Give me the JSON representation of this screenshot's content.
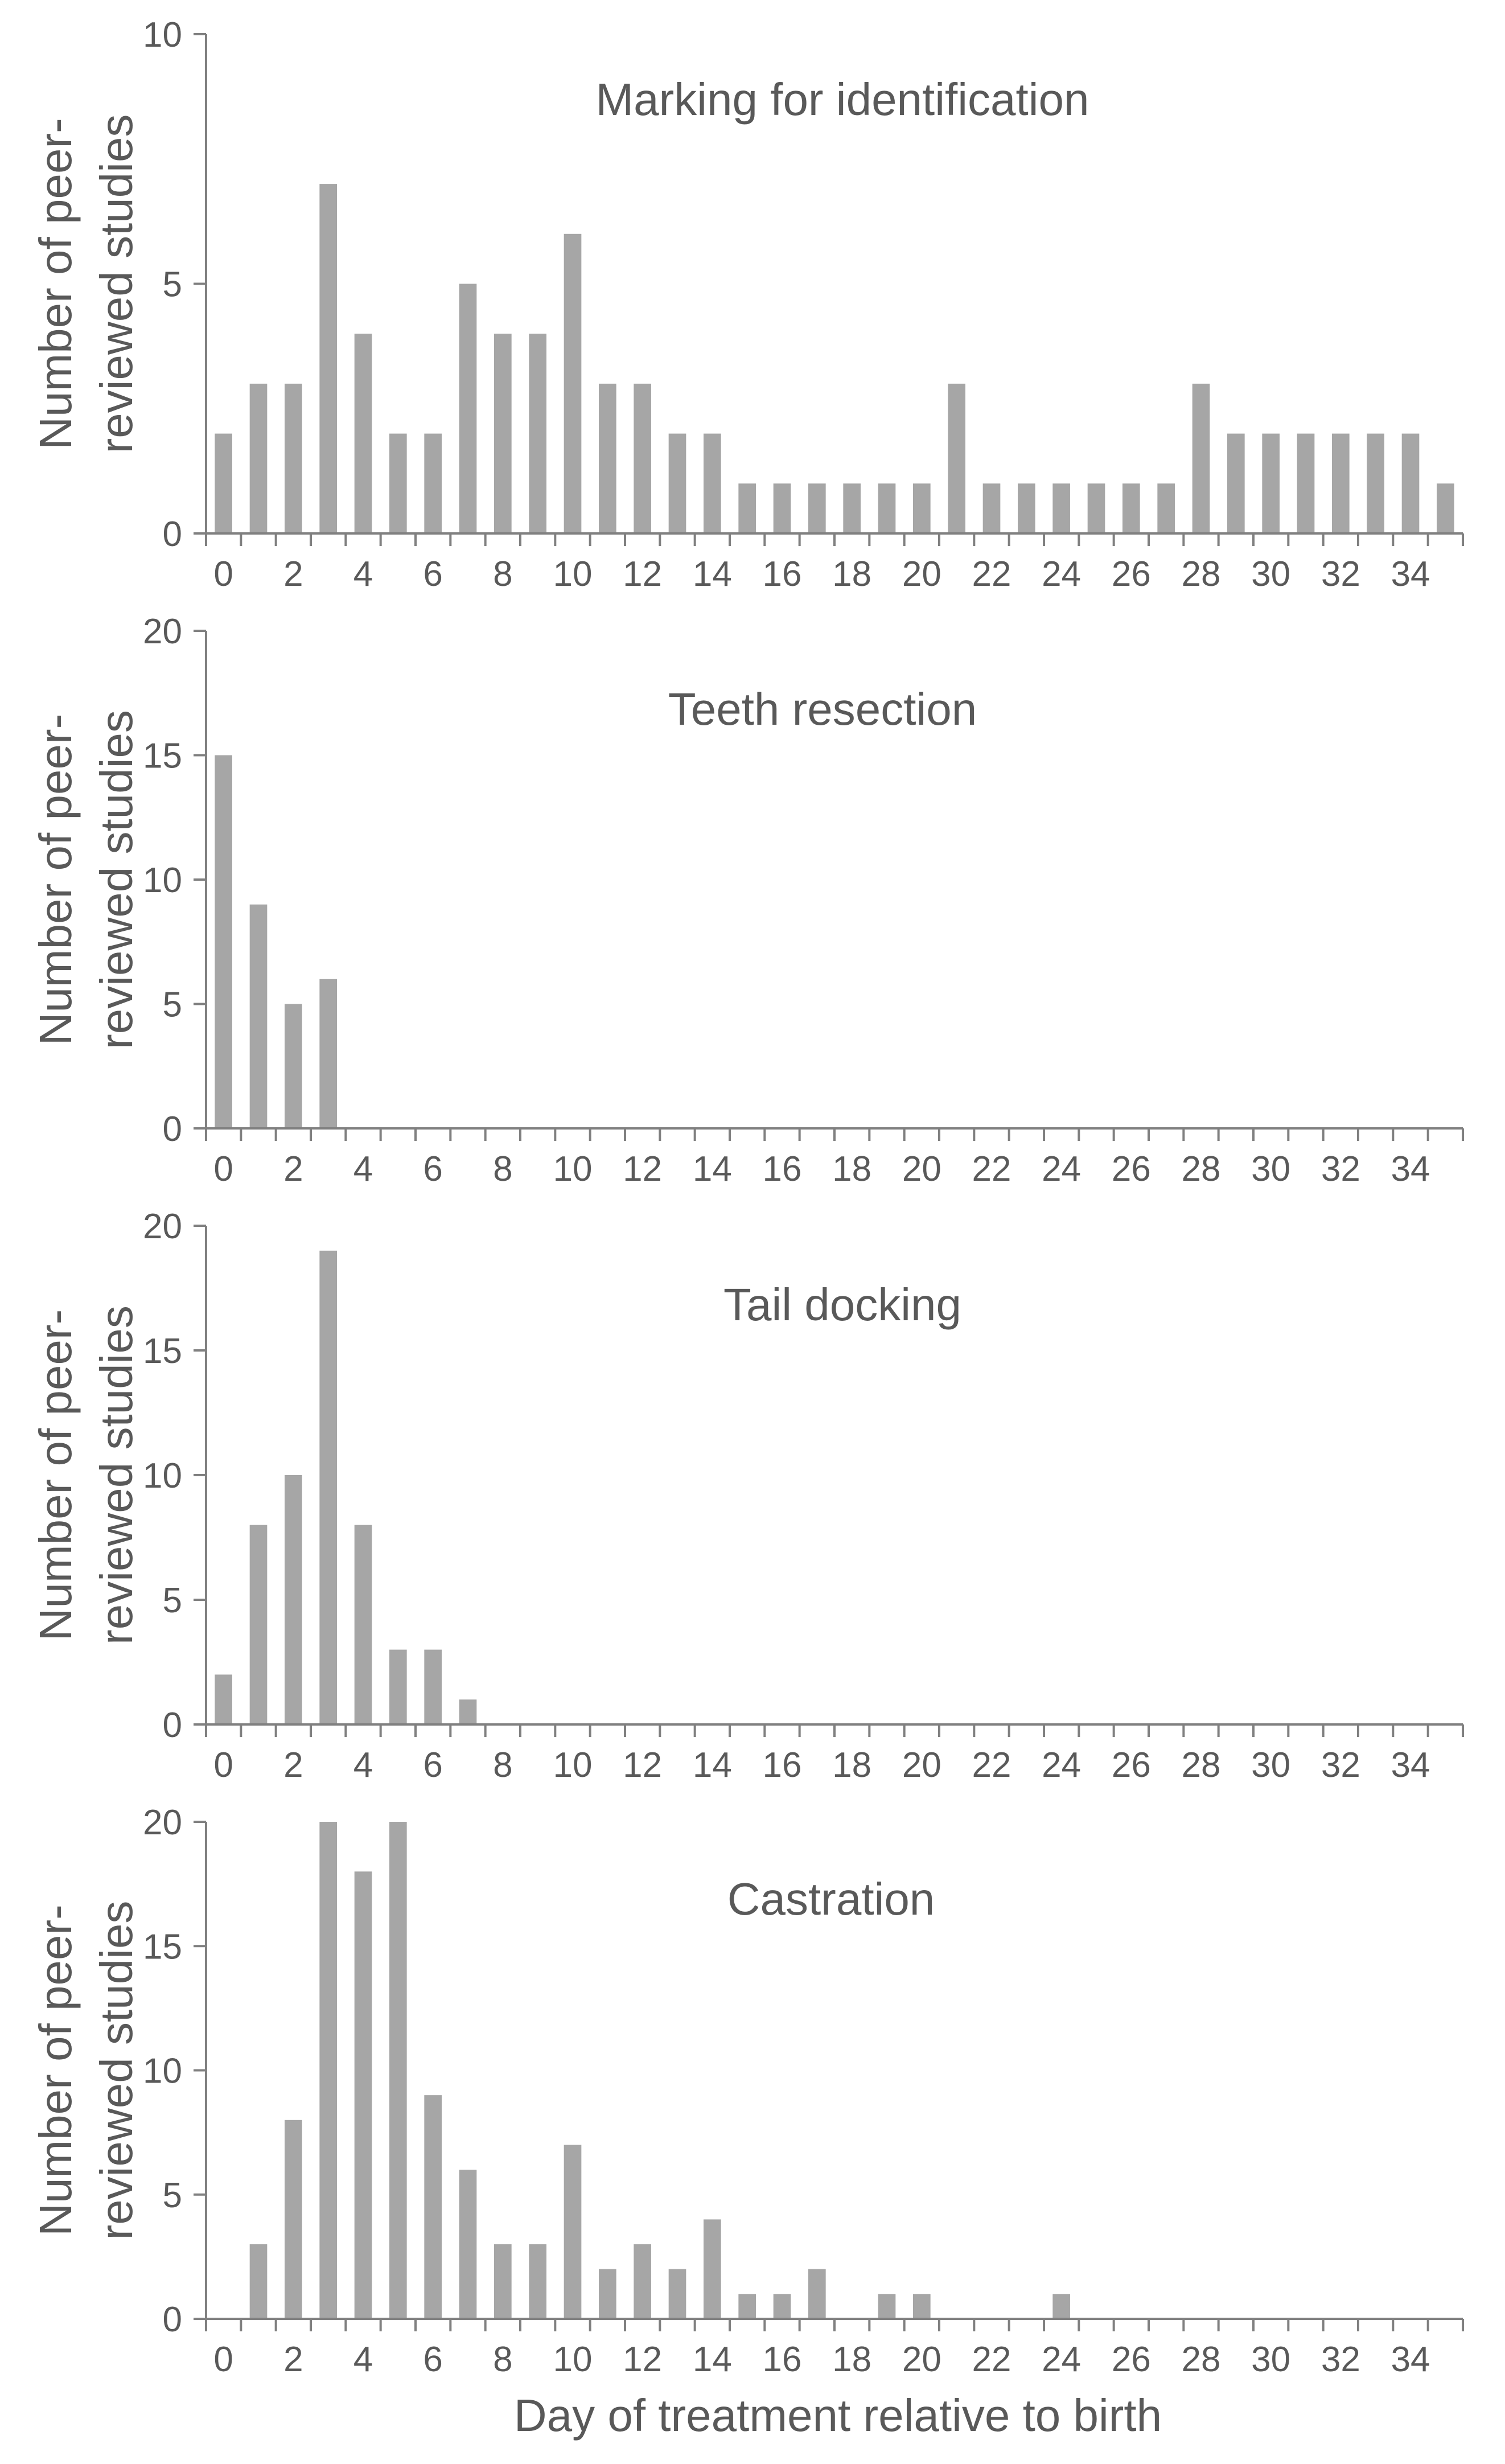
{
  "colors": {
    "bar": "#a6a6a6",
    "axis": "#808080",
    "text": "#595959"
  },
  "y_axis_label": [
    "Number of peer-",
    "reviewed studies"
  ],
  "x_axis_label": "Day of treatment relative to birth",
  "chart_data": [
    {
      "type": "bar",
      "title": "Marking for identification",
      "categories": [
        0,
        1,
        2,
        3,
        4,
        5,
        6,
        7,
        8,
        9,
        10,
        11,
        12,
        13,
        14,
        15,
        16,
        17,
        18,
        19,
        20,
        21,
        22,
        23,
        24,
        25,
        26,
        27,
        28,
        29,
        30,
        31,
        32,
        33,
        34,
        35
      ],
      "values": [
        2,
        3,
        3,
        7,
        4,
        2,
        2,
        5,
        4,
        4,
        6,
        3,
        3,
        2,
        2,
        1,
        1,
        1,
        1,
        1,
        1,
        3,
        1,
        1,
        1,
        1,
        1,
        1,
        3,
        2,
        2,
        2,
        2,
        2,
        2,
        1
      ],
      "ylim": [
        0,
        10
      ],
      "yticks": [
        0,
        5,
        10
      ],
      "xtick_labels": [
        "0",
        "2",
        "4",
        "6",
        "8",
        "10",
        "12",
        "14",
        "16",
        "18",
        "20",
        "22",
        "24",
        "26",
        "28",
        "30",
        "32",
        "34"
      ],
      "ylabel": "Number of peer-reviewed studies",
      "xlabel": ""
    },
    {
      "type": "bar",
      "title": "Teeth resection",
      "categories": [
        0,
        1,
        2,
        3,
        4,
        5,
        6,
        7,
        8,
        9,
        10,
        11,
        12,
        13,
        14,
        15,
        16,
        17,
        18,
        19,
        20,
        21,
        22,
        23,
        24,
        25,
        26,
        27,
        28,
        29,
        30,
        31,
        32,
        33,
        34,
        35
      ],
      "values": [
        15,
        9,
        5,
        6,
        0,
        0,
        0,
        0,
        0,
        0,
        0,
        0,
        0,
        0,
        0,
        0,
        0,
        0,
        0,
        0,
        0,
        0,
        0,
        0,
        0,
        0,
        0,
        0,
        0,
        0,
        0,
        0,
        0,
        0,
        0,
        0
      ],
      "ylim": [
        0,
        20
      ],
      "yticks": [
        0,
        5,
        10,
        15,
        20
      ],
      "xtick_labels": [
        "0",
        "2",
        "4",
        "6",
        "8",
        "10",
        "12",
        "14",
        "16",
        "18",
        "20",
        "22",
        "24",
        "26",
        "28",
        "30",
        "32",
        "34"
      ],
      "ylabel": "Number of peer-reviewed studies",
      "xlabel": ""
    },
    {
      "type": "bar",
      "title": "Tail docking",
      "categories": [
        0,
        1,
        2,
        3,
        4,
        5,
        6,
        7,
        8,
        9,
        10,
        11,
        12,
        13,
        14,
        15,
        16,
        17,
        18,
        19,
        20,
        21,
        22,
        23,
        24,
        25,
        26,
        27,
        28,
        29,
        30,
        31,
        32,
        33,
        34,
        35
      ],
      "values": [
        2,
        8,
        10,
        19,
        8,
        3,
        3,
        1,
        0,
        0,
        0,
        0,
        0,
        0,
        0,
        0,
        0,
        0,
        0,
        0,
        0,
        0,
        0,
        0,
        0,
        0,
        0,
        0,
        0,
        0,
        0,
        0,
        0,
        0,
        0,
        0
      ],
      "ylim": [
        0,
        20
      ],
      "yticks": [
        0,
        5,
        10,
        15,
        20
      ],
      "xtick_labels": [
        "0",
        "2",
        "4",
        "6",
        "8",
        "10",
        "12",
        "14",
        "16",
        "18",
        "20",
        "22",
        "24",
        "26",
        "28",
        "30",
        "32",
        "34"
      ],
      "ylabel": "Number of peer-reviewed studies",
      "xlabel": ""
    },
    {
      "type": "bar",
      "title": "Castration",
      "categories": [
        0,
        1,
        2,
        3,
        4,
        5,
        6,
        7,
        8,
        9,
        10,
        11,
        12,
        13,
        14,
        15,
        16,
        17,
        18,
        19,
        20,
        21,
        22,
        23,
        24,
        25,
        26,
        27,
        28,
        29,
        30,
        31,
        32,
        33,
        34,
        35
      ],
      "values": [
        0,
        3,
        8,
        20,
        18,
        20,
        9,
        6,
        3,
        3,
        7,
        2,
        3,
        2,
        4,
        1,
        1,
        2,
        0,
        1,
        1,
        0,
        0,
        0,
        1,
        0,
        0,
        0,
        0,
        0,
        0,
        0,
        0,
        0,
        0,
        0
      ],
      "ylim": [
        0,
        20
      ],
      "yticks": [
        0,
        5,
        10,
        15,
        20
      ],
      "xtick_labels": [
        "0",
        "2",
        "4",
        "6",
        "8",
        "10",
        "12",
        "14",
        "16",
        "18",
        "20",
        "22",
        "24",
        "26",
        "28",
        "30",
        "32",
        "34"
      ],
      "ylabel": "Number of peer-reviewed studies",
      "xlabel": "Day of treatment relative to birth"
    }
  ]
}
